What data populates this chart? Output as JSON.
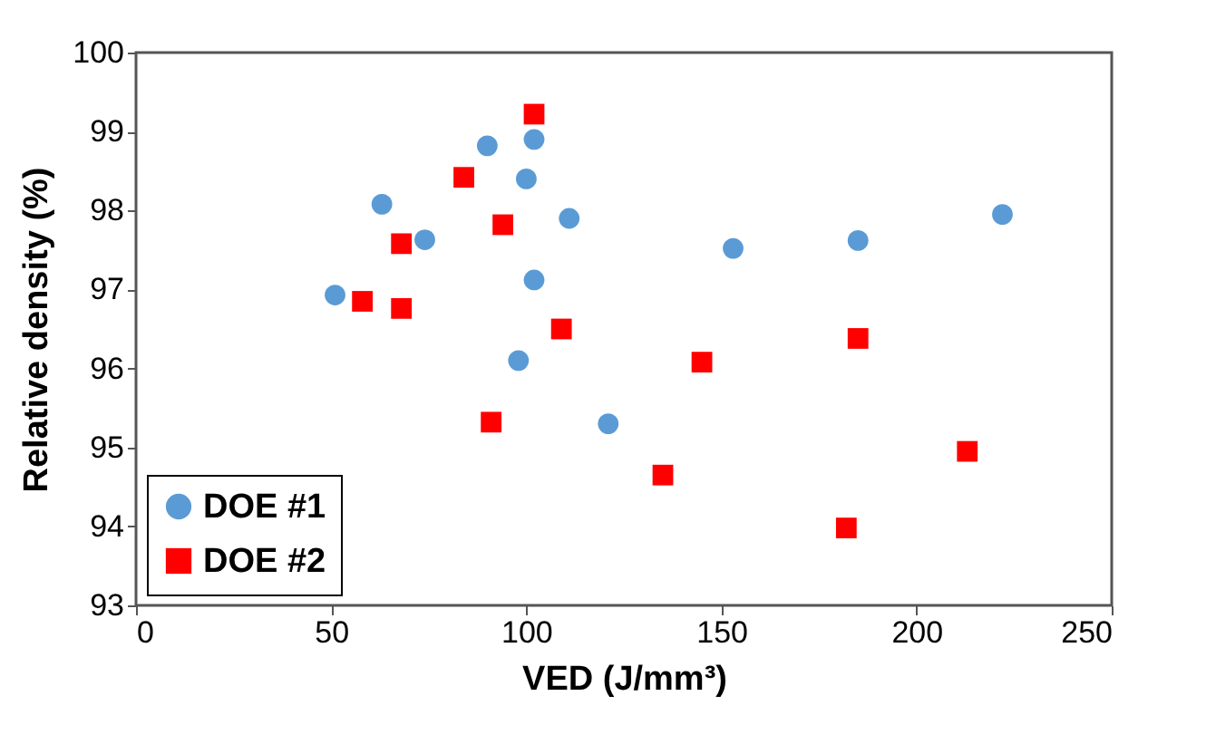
{
  "chart_data": {
    "type": "scatter",
    "xlabel": "VED (J/mm³)",
    "ylabel": "Relative density (%)",
    "xlim": [
      0,
      250
    ],
    "xticks": [
      0,
      50,
      100,
      150,
      200,
      250
    ],
    "ylim": [
      93,
      100
    ],
    "yticks": [
      93,
      94,
      95,
      96,
      97,
      98,
      99,
      100
    ],
    "grid": false,
    "legend": "bottom left",
    "series": [
      {
        "name": "DOE #1",
        "color": "#5b9bd5",
        "marker": "circle",
        "x": [
          51,
          63,
          74,
          90,
          100,
          102,
          102,
          98,
          111,
          121,
          153,
          185,
          222
        ],
        "values": [
          96.93,
          98.08,
          97.63,
          98.82,
          98.4,
          98.9,
          97.12,
          96.1,
          97.9,
          95.3,
          97.52,
          97.62,
          97.95
        ]
      },
      {
        "name": "DOE #2",
        "color": "#ff0000",
        "marker": "square",
        "x": [
          58,
          68,
          68,
          84,
          94,
          102,
          109,
          91,
          145,
          135,
          185,
          182,
          213
        ],
        "values": [
          96.85,
          97.58,
          96.76,
          98.42,
          97.82,
          99.22,
          96.5,
          95.32,
          96.08,
          94.65,
          96.38,
          93.98,
          94.95
        ]
      }
    ]
  }
}
